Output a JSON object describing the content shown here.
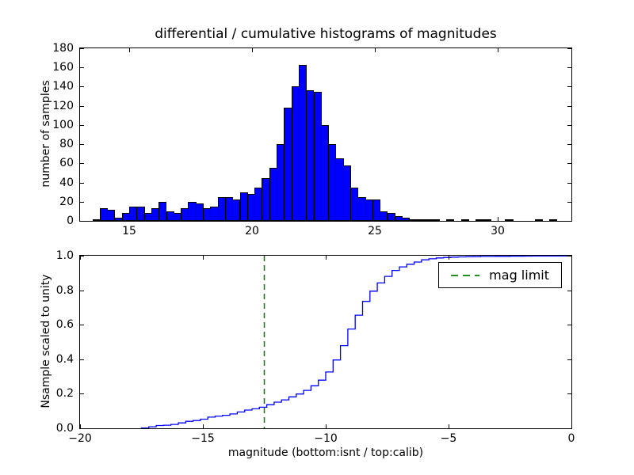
{
  "figure": {
    "background": "#ffffff"
  },
  "chart_data": [
    {
      "type": "bar",
      "subplot": "top",
      "title": "differential / cumulative histograms of magnitudes",
      "xlabel": "",
      "ylabel": "number of samples",
      "xlim": [
        13,
        33
      ],
      "ylim": [
        0,
        180
      ],
      "xticks": [
        15,
        20,
        25,
        30
      ],
      "xtick_labels": [
        "15",
        "20",
        "25",
        "30"
      ],
      "yticks": [
        0,
        20,
        40,
        60,
        80,
        100,
        120,
        140,
        160,
        180
      ],
      "ytick_labels": [
        "0",
        "20",
        "40",
        "60",
        "80",
        "100",
        "120",
        "140",
        "160",
        "180"
      ],
      "bin_start": 13.5,
      "bin_width": 0.3,
      "values": [
        2,
        13,
        12,
        3,
        8,
        15,
        15,
        8,
        13,
        20,
        10,
        8,
        13,
        20,
        18,
        13,
        15,
        25,
        25,
        22,
        30,
        28,
        35,
        45,
        55,
        80,
        118,
        140,
        163,
        136,
        135,
        100,
        80,
        65,
        58,
        35,
        25,
        22,
        22,
        10,
        8,
        5,
        3,
        2,
        2,
        1,
        2,
        0,
        1,
        0,
        1,
        0,
        1,
        1,
        0,
        0,
        1,
        0,
        0,
        0,
        1,
        0,
        1
      ],
      "bar_color": "#0000ff",
      "bar_edge_color": "#000000",
      "grid": false
    },
    {
      "type": "line",
      "subplot": "bottom",
      "style": "cumulative-step-scaled-to-unity-of-top-histogram",
      "xlabel": "magnitude (bottom:isnt / top:calib)",
      "ylabel": "Nsample scaled to unity",
      "xlim": [
        -20,
        0
      ],
      "ylim": [
        0,
        1
      ],
      "xticks": [
        -20,
        -15,
        -10,
        -5,
        0
      ],
      "xtick_labels": [
        "−20",
        "−15",
        "−10",
        "−5",
        "0"
      ],
      "yticks": [
        0,
        0.2,
        0.4,
        0.6,
        0.8,
        1
      ],
      "ytick_labels": [
        "0.0",
        "0.2",
        "0.4",
        "0.6",
        "0.8",
        "1.0"
      ],
      "line_color": "#0000ff",
      "x_offset_from_top_mags": -31,
      "vline": {
        "x": -12.5,
        "color": "#008000",
        "style": "dashed"
      },
      "legend": {
        "position": "upper right",
        "entries": [
          {
            "label": "mag limit",
            "color": "#008000",
            "dash": true
          }
        ]
      },
      "grid": false
    }
  ]
}
